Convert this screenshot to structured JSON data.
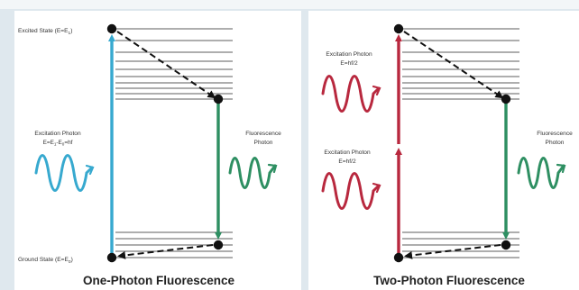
{
  "colors": {
    "panel_bg": "#ffffff",
    "page_bg": "#dfe8ee",
    "level_line": "#7d7d7d",
    "state_dot": "#111111",
    "one_photon_excitation": "#37a9cf",
    "two_photon_excitation": "#b8283e",
    "fluorescence": "#2e8f62",
    "nonradiative_arrow": "#111111"
  },
  "left_panel": {
    "excited_state_label": "Excited State (E=E",
    "excited_state_sub": "1",
    "ground_state_label": "Ground State (E=E",
    "ground_state_sub": "0",
    "excitation_title": "Excitation Photon",
    "excitation_formula_a": "E=E",
    "excitation_formula_sub1": "1",
    "excitation_formula_b": "-E",
    "excitation_formula_sub0": "0",
    "excitation_formula_c": "=hf",
    "fluorescence_line1": "Fluorescence",
    "fluorescence_line2": "Photon",
    "caption": "One-Photon Fluorescence"
  },
  "right_panel": {
    "excitation_upper_title": "Excitation Photon",
    "excitation_upper_formula": "E=hf/2",
    "excitation_lower_title": "Excitation Photon",
    "excitation_lower_formula": "E=hf/2",
    "fluorescence_line1": "Fluorescence",
    "fluorescence_line2": "Photon",
    "caption": "Two-Photon Fluorescence"
  },
  "icons": {
    "wave_one_photon_excitation": "sine-wave-with-arrow",
    "wave_two_photon_upper": "sine-wave-with-arrow",
    "wave_two_photon_lower": "sine-wave-with-arrow",
    "wave_fluorescence_left": "sine-wave-with-arrow",
    "wave_fluorescence_right": "sine-wave-with-arrow"
  }
}
